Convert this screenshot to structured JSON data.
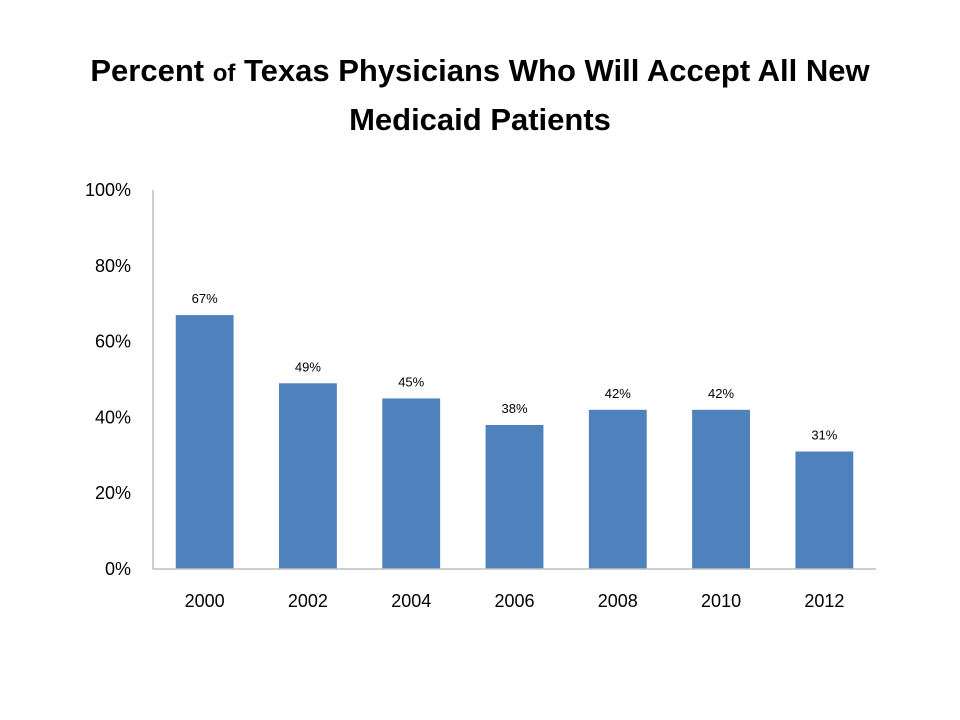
{
  "title": {
    "part1": "Percent ",
    "part2": "of",
    "part3": " Texas Physicians Who Will Accept All New",
    "line2": "Medicaid Patients"
  },
  "colors": {
    "bar": "#4F81BD",
    "axis": "#BFBFBF",
    "text": "#000000"
  },
  "chart_data": {
    "type": "bar",
    "title": "Percent of Texas Physicians Who Will Accept All New Medicaid Patients",
    "categories": [
      "2000",
      "2002",
      "2004",
      "2006",
      "2008",
      "2010",
      "2012"
    ],
    "values": [
      67,
      49,
      45,
      38,
      42,
      42,
      31
    ],
    "data_labels": [
      "67%",
      "49%",
      "45%",
      "38%",
      "42%",
      "42%",
      "31%"
    ],
    "xlabel": "",
    "ylabel": "",
    "ylim": [
      0,
      100
    ],
    "yticks": [
      0,
      20,
      40,
      60,
      80,
      100
    ],
    "ytick_labels": [
      "0%",
      "20%",
      "40%",
      "60%",
      "80%",
      "100%"
    ],
    "grid": false,
    "legend": "none"
  }
}
